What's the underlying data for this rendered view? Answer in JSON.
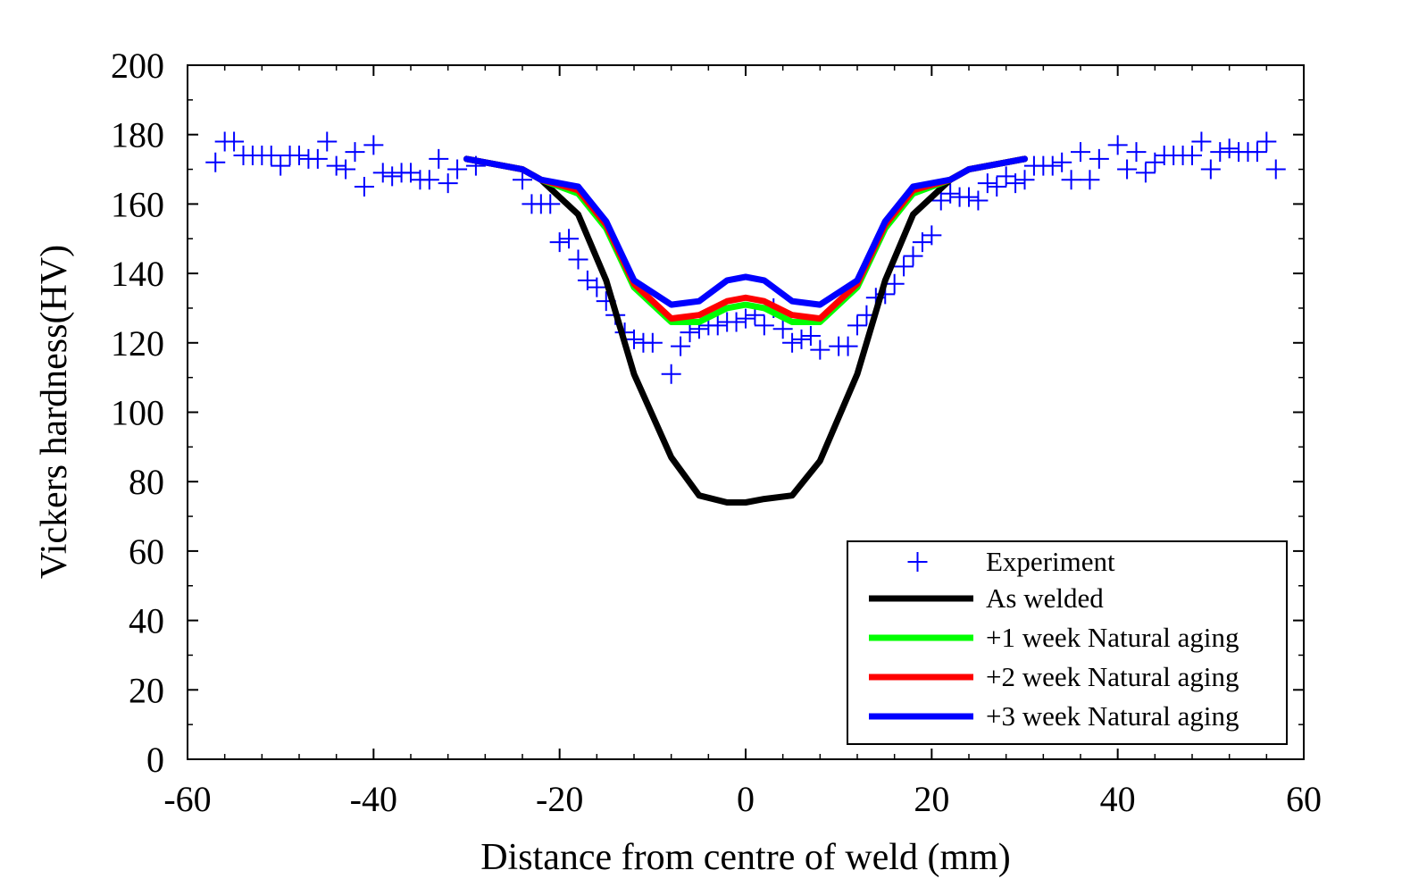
{
  "chart_data": {
    "type": "line",
    "xlabel": "Distance from centre of weld (mm)",
    "ylabel": "Vickers hardness(HV)",
    "xlim": [
      -60,
      60
    ],
    "ylim": [
      0,
      200
    ],
    "xticks": [
      "-60",
      "-40",
      "-20",
      "0",
      "20",
      "40",
      "60"
    ],
    "yticks": [
      "0",
      "20",
      "40",
      "60",
      "80",
      "100",
      "120",
      "140",
      "160",
      "180",
      "200"
    ],
    "grid": false,
    "legend_position": "bottom-right",
    "experiment": {
      "name": "Experiment",
      "marker": "plus",
      "color": "#0000ff",
      "x": [
        -57,
        -56,
        -55,
        -54,
        -53,
        -52,
        -51,
        -50,
        -49,
        -48,
        -47,
        -46,
        -45,
        -44,
        -43,
        -42,
        -41,
        -40,
        -39,
        -38,
        -37,
        -36,
        -35,
        -34,
        -33,
        -32,
        -31,
        -29,
        -24,
        -23,
        -22,
        -21,
        -20,
        -19,
        -18,
        -17,
        -16,
        -15,
        -14,
        -13,
        -12,
        -11,
        -10,
        -8,
        -7,
        -6,
        -5,
        -4,
        -3,
        -2,
        -1,
        0,
        1,
        2,
        3,
        4,
        5,
        6,
        7,
        8,
        10,
        11,
        12,
        13,
        14,
        15,
        16,
        17,
        18,
        19,
        20,
        21,
        22,
        23,
        24,
        25,
        26,
        27,
        28,
        29,
        30,
        31,
        32,
        33,
        34,
        35,
        36,
        37,
        38,
        40,
        41,
        42,
        43,
        44,
        45,
        46,
        47,
        48,
        49,
        50,
        51,
        52,
        53,
        54,
        55,
        56,
        57
      ],
      "y": [
        172,
        178,
        178,
        174,
        174,
        174,
        174,
        171,
        174,
        174,
        173,
        173,
        178,
        171,
        170,
        175,
        165,
        177,
        169,
        168,
        169,
        169,
        167,
        167,
        173,
        166,
        170,
        171,
        167,
        160,
        160,
        160,
        149,
        150,
        144,
        138,
        136,
        132,
        128,
        123,
        121,
        120,
        120,
        111,
        119,
        123,
        124,
        125,
        125,
        126,
        126,
        127,
        128,
        125,
        130,
        124,
        120,
        121,
        122,
        118,
        119,
        119,
        125,
        128,
        133,
        134,
        137,
        142,
        145,
        149,
        151,
        161,
        163,
        162,
        162,
        161,
        166,
        165,
        168,
        166,
        167,
        171,
        171,
        171,
        172,
        167,
        175,
        167,
        173,
        177,
        170,
        175,
        169,
        172,
        174,
        174,
        174,
        174,
        178,
        170,
        175,
        176,
        175,
        175,
        175,
        178,
        170
      ]
    },
    "x": [
      -30,
      -24,
      -22,
      -18,
      -15,
      -12,
      -8,
      -5,
      -2,
      0,
      2,
      5,
      8,
      12,
      15,
      18,
      22,
      24,
      26,
      30
    ],
    "series": [
      {
        "name": "As welded",
        "color": "#000000",
        "values": [
          173,
          170,
          167,
          157,
          138,
          111,
          87,
          76,
          74,
          74,
          75,
          76,
          86,
          111,
          138,
          157,
          167,
          170,
          171,
          173
        ]
      },
      {
        "name": "+1 week Natural aging",
        "color": "#00ff00",
        "values": [
          173,
          170,
          167,
          163,
          153,
          136,
          126,
          126,
          130,
          131,
          130,
          126,
          126,
          136,
          153,
          163,
          167,
          170,
          171,
          173
        ]
      },
      {
        "name": "+2 week Natural aging",
        "color": "#ff0000",
        "values": [
          173,
          170,
          167,
          164,
          154,
          137,
          127,
          128,
          132,
          133,
          132,
          128,
          127,
          137,
          154,
          164,
          167,
          170,
          171,
          173
        ]
      },
      {
        "name": "+3 week Natural aging",
        "color": "#0000ff",
        "values": [
          173,
          170,
          167,
          165,
          155,
          138,
          131,
          132,
          138,
          139,
          138,
          132,
          131,
          138,
          155,
          165,
          167,
          170,
          171,
          173
        ]
      }
    ]
  }
}
